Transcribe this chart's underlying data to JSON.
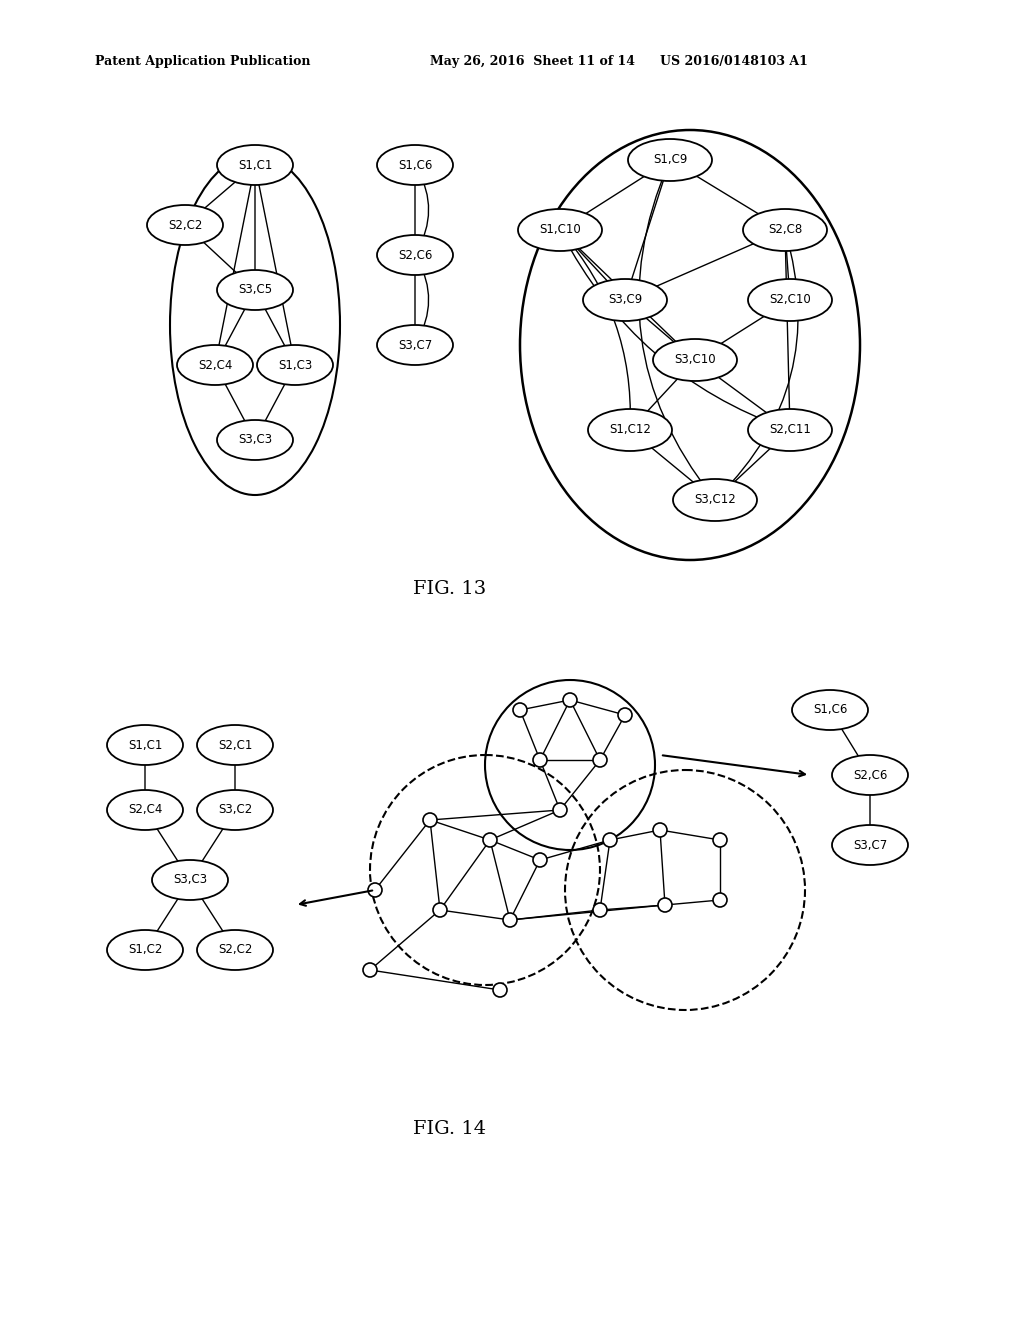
{
  "header_left": "Patent Application Publication",
  "header_mid": "May 26, 2016  Sheet 11 of 14",
  "header_right": "US 2016/0148103 A1",
  "fig13_label": "FIG. 13",
  "fig14_label": "FIG. 14",
  "bg_color": "#ffffff"
}
